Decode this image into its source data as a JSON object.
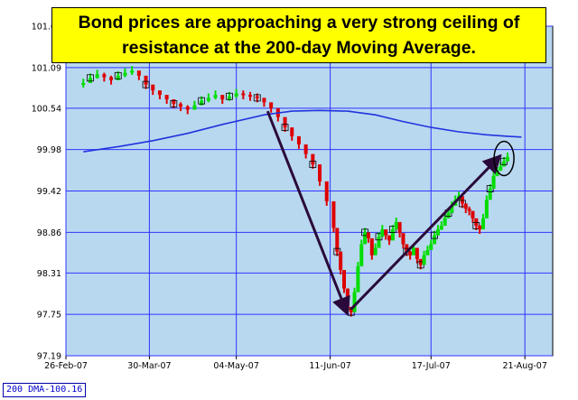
{
  "headline": "Bond prices are approaching a very strong ceiling of resistance at the 200-day Moving Average.",
  "dma_label": "200 DMA-100.16",
  "colors": {
    "background_plot": "#b8d8f0",
    "grid": "#3333ff",
    "ma_line": "#2233dd",
    "up_bar": "#00dd00",
    "down_bar": "#dd0000",
    "arrow": "#2a0a3a",
    "headline_bg": "#ffff00"
  },
  "chart_data": {
    "type": "candlestick",
    "title": "",
    "xlabel": "",
    "ylabel": "",
    "ylim": [
      97.19,
      101.65
    ],
    "y_ticks": [
      "101.65",
      "101.09",
      "100.54",
      "99.98",
      "99.42",
      "98.86",
      "98.31",
      "97.75",
      "97.19"
    ],
    "x_ticks": [
      "26-Feb-07",
      "30-Mar-07",
      "04-May-07",
      "11-Jun-07",
      "17-Jul-07",
      "21-Aug-07"
    ],
    "grid": true,
    "series": [
      {
        "name": "200 DMA",
        "type": "line",
        "points": [
          [
            0,
            99.95
          ],
          [
            10,
            100.02
          ],
          [
            20,
            100.1
          ],
          [
            30,
            100.2
          ],
          [
            40,
            100.32
          ],
          [
            52,
            100.45
          ],
          [
            60,
            100.5
          ],
          [
            68,
            100.51
          ],
          [
            76,
            100.5
          ],
          [
            84,
            100.45
          ],
          [
            92,
            100.36
          ],
          [
            100,
            100.28
          ],
          [
            108,
            100.22
          ],
          [
            116,
            100.18
          ],
          [
            122,
            100.16
          ],
          [
            126,
            100.15
          ]
        ]
      },
      {
        "name": "price",
        "type": "bars",
        "points": [
          [
            0,
            100.88
          ],
          [
            2,
            100.95
          ],
          [
            4,
            101.0
          ],
          [
            6,
            100.96
          ],
          [
            8,
            100.92
          ],
          [
            10,
            100.98
          ],
          [
            12,
            101.02
          ],
          [
            14,
            101.05
          ],
          [
            16,
            100.98
          ],
          [
            18,
            100.86
          ],
          [
            20,
            100.78
          ],
          [
            22,
            100.72
          ],
          [
            24,
            100.66
          ],
          [
            26,
            100.6
          ],
          [
            28,
            100.56
          ],
          [
            30,
            100.52
          ],
          [
            32,
            100.58
          ],
          [
            34,
            100.64
          ],
          [
            36,
            100.68
          ],
          [
            38,
            100.72
          ],
          [
            40,
            100.66
          ],
          [
            42,
            100.7
          ],
          [
            44,
            100.74
          ],
          [
            46,
            100.72
          ],
          [
            48,
            100.7
          ],
          [
            50,
            100.68
          ],
          [
            52,
            100.62
          ],
          [
            54,
            100.54
          ],
          [
            56,
            100.42
          ],
          [
            58,
            100.28
          ],
          [
            60,
            100.16
          ],
          [
            62,
            100.05
          ],
          [
            64,
            99.92
          ],
          [
            66,
            99.78
          ],
          [
            68,
            99.55
          ],
          [
            70,
            99.28
          ],
          [
            72,
            98.92
          ],
          [
            73,
            98.6
          ],
          [
            74,
            98.35
          ],
          [
            75,
            98.1
          ],
          [
            76,
            97.85
          ],
          [
            77,
            97.78
          ],
          [
            78,
            98.05
          ],
          [
            79,
            98.4
          ],
          [
            80,
            98.7
          ],
          [
            81,
            98.86
          ],
          [
            82,
            98.78
          ],
          [
            83,
            98.55
          ],
          [
            84,
            98.65
          ],
          [
            85,
            98.8
          ],
          [
            86,
            98.9
          ],
          [
            87,
            98.82
          ],
          [
            88,
            98.75
          ],
          [
            89,
            98.9
          ],
          [
            90,
            99.0
          ],
          [
            91,
            98.85
          ],
          [
            92,
            98.7
          ],
          [
            93,
            98.6
          ],
          [
            94,
            98.55
          ],
          [
            95,
            98.65
          ],
          [
            96,
            98.5
          ],
          [
            97,
            98.42
          ],
          [
            98,
            98.55
          ],
          [
            99,
            98.62
          ],
          [
            100,
            98.7
          ],
          [
            101,
            98.82
          ],
          [
            102,
            98.9
          ],
          [
            103,
            98.95
          ],
          [
            104,
            99.05
          ],
          [
            105,
            99.12
          ],
          [
            106,
            99.22
          ],
          [
            107,
            99.3
          ],
          [
            108,
            99.35
          ],
          [
            109,
            99.25
          ],
          [
            110,
            99.18
          ],
          [
            111,
            99.15
          ],
          [
            112,
            99.05
          ],
          [
            113,
            98.95
          ],
          [
            114,
            98.9
          ],
          [
            115,
            99.05
          ],
          [
            116,
            99.3
          ],
          [
            117,
            99.45
          ],
          [
            118,
            99.62
          ],
          [
            119,
            99.7
          ],
          [
            120,
            99.75
          ],
          [
            121,
            99.82
          ],
          [
            122,
            99.88
          ]
        ]
      }
    ],
    "annotations": [
      {
        "type": "arrow",
        "from": [
          53,
          100.5
        ],
        "to": [
          76,
          97.75
        ]
      },
      {
        "type": "arrow",
        "from": [
          77,
          97.82
        ],
        "to": [
          120,
          99.9
        ]
      },
      {
        "type": "ellipse",
        "center": [
          121,
          99.86
        ]
      }
    ],
    "x_range": [
      -5,
      135
    ],
    "x_tick_positions": [
      -5,
      19,
      44,
      71,
      100,
      127
    ]
  }
}
